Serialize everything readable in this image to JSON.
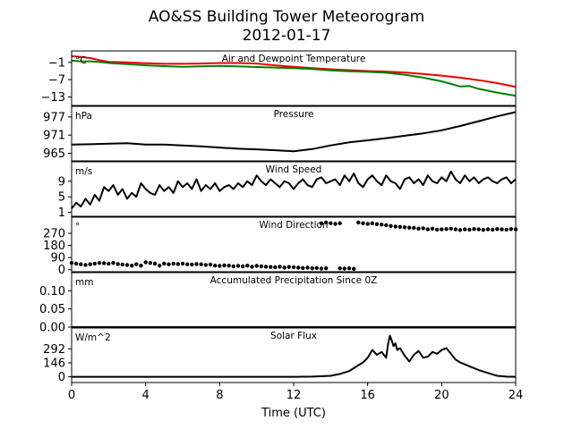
{
  "figure": {
    "title_line1": "AO&SS Building Tower Meteorogram",
    "title_line2": "2012-01-17",
    "xlabel": "Time (UTC)",
    "xticks": [
      0,
      4,
      8,
      12,
      16,
      20,
      24
    ],
    "xlim": [
      0,
      24
    ]
  },
  "chart_data": [
    {
      "type": "line",
      "title": "Air and Dewpoint Temperature",
      "unit": "°C",
      "yticks": [
        -1,
        -7,
        -13
      ],
      "ylim": [
        -16,
        3
      ],
      "series": [
        {
          "color": "#ee0000",
          "x": [
            0,
            0.5,
            1,
            1.5,
            2,
            3,
            4,
            5,
            6,
            7,
            8,
            9,
            10,
            11,
            12,
            13,
            14,
            15,
            16,
            17,
            18,
            19,
            20,
            21,
            22,
            23,
            24
          ],
          "y": [
            1.2,
            0.9,
            0.5,
            -0.2,
            -0.8,
            -1.0,
            -1.3,
            -1.5,
            -1.5,
            -1.4,
            -1.2,
            -1.2,
            -1.4,
            -2.0,
            -2.5,
            -3.0,
            -3.4,
            -3.7,
            -4.0,
            -4.2,
            -4.5,
            -5.0,
            -5.6,
            -6.3,
            -7.2,
            -8.2,
            -9.5
          ]
        },
        {
          "color": "#008000",
          "x": [
            0,
            0.5,
            1,
            1.5,
            2,
            3,
            4,
            5,
            6,
            7,
            8,
            9,
            10,
            11,
            12,
            13,
            14,
            15,
            16,
            17,
            18,
            19,
            20,
            20.5,
            21,
            21.5,
            22,
            23,
            24
          ],
          "y": [
            -0.4,
            -0.6,
            -0.6,
            -0.8,
            -1.2,
            -1.6,
            -2.0,
            -2.3,
            -2.5,
            -2.4,
            -2.2,
            -2.4,
            -2.6,
            -2.8,
            -3.0,
            -3.3,
            -3.8,
            -4.1,
            -4.3,
            -4.6,
            -5.3,
            -6.3,
            -7.6,
            -8.5,
            -9.4,
            -9.2,
            -10.2,
            -11.5,
            -12.6
          ]
        }
      ]
    },
    {
      "type": "line",
      "title": "Pressure",
      "unit": "hPa",
      "yticks": [
        977,
        971,
        965
      ],
      "ylim": [
        962.5,
        980.5
      ],
      "series": [
        {
          "color": "#000000",
          "x": [
            0,
            1,
            2,
            3,
            4,
            5,
            6,
            7,
            8,
            9,
            10,
            11,
            12,
            13,
            14,
            15,
            16,
            17,
            18,
            19,
            20,
            21,
            22,
            23,
            24
          ],
          "y": [
            967.9,
            968.0,
            968.2,
            968.3,
            967.9,
            967.9,
            967.6,
            967.3,
            966.9,
            966.5,
            966.3,
            966.0,
            965.7,
            966.4,
            967.6,
            968.6,
            969.3,
            970.0,
            970.8,
            971.6,
            972.6,
            974.0,
            975.6,
            977.2,
            978.6
          ]
        }
      ]
    },
    {
      "type": "line",
      "title": "Wind Speed",
      "unit": "m/s",
      "yticks": [
        9,
        5,
        1
      ],
      "ylim": [
        0,
        14
      ],
      "series": [
        {
          "color": "#000000",
          "x": [
            0,
            0.25,
            0.5,
            0.75,
            1,
            1.25,
            1.5,
            1.75,
            2,
            2.25,
            2.5,
            2.75,
            3,
            3.25,
            3.5,
            3.75,
            4,
            4.25,
            4.5,
            4.75,
            5,
            5.25,
            5.5,
            5.75,
            6,
            6.25,
            6.5,
            6.75,
            7,
            7.25,
            7.5,
            7.75,
            8,
            8.25,
            8.5,
            8.75,
            9,
            9.25,
            9.5,
            9.75,
            10,
            10.25,
            10.5,
            10.75,
            11,
            11.25,
            11.5,
            11.75,
            12,
            12.25,
            12.5,
            12.75,
            13,
            13.25,
            13.5,
            13.75,
            14,
            14.25,
            14.5,
            14.75,
            15,
            15.25,
            15.5,
            15.75,
            16,
            16.25,
            16.5,
            16.75,
            17,
            17.25,
            17.5,
            17.75,
            18,
            18.25,
            18.5,
            18.75,
            19,
            19.25,
            19.5,
            19.75,
            20,
            20.25,
            20.5,
            20.75,
            21,
            21.25,
            21.5,
            21.75,
            22,
            22.25,
            22.5,
            22.75,
            23,
            23.25,
            23.5,
            23.75,
            24
          ],
          "y": [
            2.0,
            3.5,
            2.5,
            4.5,
            3.0,
            5.5,
            4.0,
            7.5,
            6.5,
            8.0,
            5.5,
            7.0,
            4.5,
            6.0,
            5.0,
            8.5,
            7.0,
            6.0,
            5.5,
            8.0,
            6.5,
            7.5,
            6.0,
            9.0,
            7.5,
            8.5,
            7.0,
            9.5,
            6.5,
            8.0,
            7.0,
            8.5,
            6.5,
            7.5,
            8.0,
            7.0,
            8.5,
            7.5,
            9.0,
            8.0,
            10.5,
            9.0,
            8.0,
            9.5,
            8.5,
            7.5,
            9.0,
            8.5,
            7.0,
            8.5,
            9.5,
            8.0,
            7.5,
            9.5,
            10.0,
            8.5,
            9.0,
            9.5,
            8.0,
            10.5,
            9.0,
            11.0,
            8.5,
            7.5,
            9.5,
            10.5,
            9.0,
            8.0,
            10.5,
            9.0,
            8.5,
            7.0,
            9.5,
            10.0,
            8.5,
            9.5,
            8.0,
            10.5,
            9.0,
            8.5,
            10.0,
            9.0,
            11.5,
            9.5,
            8.5,
            10.5,
            9.0,
            10.0,
            8.5,
            9.5,
            10.0,
            9.0,
            8.5,
            9.5,
            10.0,
            8.5,
            9.5
          ]
        }
      ]
    },
    {
      "type": "scatter",
      "title": "Wind Direction",
      "unit": "°",
      "yticks": [
        270,
        180,
        90,
        0
      ],
      "ylim": [
        -15,
        390
      ],
      "series": [
        {
          "color": "#000000",
          "x": [
            0,
            0.25,
            0.5,
            0.75,
            1,
            1.25,
            1.5,
            1.75,
            2,
            2.25,
            2.5,
            2.75,
            3,
            3.25,
            3.5,
            3.75,
            4,
            4.25,
            4.5,
            4.75,
            5,
            5.25,
            5.5,
            5.75,
            6,
            6.25,
            6.5,
            6.75,
            7,
            7.25,
            7.5,
            7.75,
            8,
            8.25,
            8.5,
            8.75,
            9,
            9.25,
            9.5,
            9.75,
            10,
            10.25,
            10.5,
            10.75,
            11,
            11.25,
            11.5,
            11.75,
            12,
            12.25,
            12.5,
            12.75,
            13,
            13.25,
            13.5,
            13.75,
            14.5,
            14.75,
            15,
            15.25
          ],
          "y": [
            50,
            45,
            40,
            35,
            40,
            45,
            50,
            48,
            45,
            50,
            42,
            38,
            35,
            30,
            40,
            30,
            55,
            50,
            45,
            30,
            45,
            40,
            45,
            42,
            45,
            40,
            38,
            42,
            40,
            35,
            38,
            30,
            28,
            32,
            30,
            25,
            28,
            25,
            30,
            22,
            28,
            25,
            22,
            20,
            18,
            22,
            15,
            20,
            18,
            15,
            12,
            15,
            10,
            12,
            8,
            10,
            10,
            8,
            10,
            6
          ]
        },
        {
          "color": "#000000",
          "x": [
            13.5,
            13.75,
            14,
            14.25,
            14.5,
            15.5,
            15.75,
            16,
            16.25,
            16.5,
            16.75,
            17,
            17.25,
            17.5,
            17.75,
            18,
            18.25,
            18.5,
            18.75,
            19,
            19.25,
            19.5,
            19.75,
            20,
            20.25,
            20.5,
            20.75,
            21,
            21.25,
            21.5,
            21.75,
            22,
            22.25,
            22.5,
            22.75,
            23,
            23.25,
            23.5,
            23.75,
            24
          ],
          "y": [
            345,
            350,
            345,
            340,
            345,
            350,
            345,
            340,
            345,
            338,
            335,
            330,
            325,
            320,
            318,
            315,
            312,
            310,
            305,
            308,
            300,
            305,
            298,
            300,
            302,
            305,
            300,
            295,
            300,
            298,
            302,
            300,
            296,
            300,
            298,
            302,
            300,
            298,
            302,
            300
          ]
        }
      ]
    },
    {
      "type": "line",
      "title": "Accumulated Precipitation Since 0Z",
      "unit": "mm",
      "yticks": [
        0.1,
        0.05,
        0.0
      ],
      "ytick_labels": [
        "0.10",
        "0.05",
        "0.00"
      ],
      "ylim": [
        0,
        0.15
      ],
      "series": [
        {
          "color": "#000000",
          "x": [
            0,
            24
          ],
          "y": [
            0,
            0
          ]
        }
      ]
    },
    {
      "type": "line",
      "title": "Solar Flux",
      "unit": "W/m^2",
      "yticks": [
        292,
        146,
        0
      ],
      "ylim": [
        -60,
        510
      ],
      "series": [
        {
          "color": "#000000",
          "x": [
            0,
            12,
            13,
            14,
            14.5,
            15,
            15.25,
            15.5,
            15.75,
            16,
            16.25,
            16.5,
            16.75,
            17,
            17.1,
            17.2,
            17.3,
            17.4,
            17.5,
            17.6,
            17.75,
            18,
            18.25,
            18.5,
            18.75,
            19,
            19.25,
            19.5,
            19.75,
            20,
            20.25,
            20.5,
            20.75,
            21,
            21.5,
            22,
            22.5,
            23,
            23.5,
            24
          ],
          "y": [
            0,
            0,
            2,
            10,
            30,
            60,
            90,
            120,
            150,
            200,
            280,
            230,
            260,
            200,
            340,
            430,
            380,
            320,
            350,
            280,
            300,
            220,
            160,
            230,
            270,
            200,
            210,
            260,
            240,
            280,
            300,
            240,
            180,
            150,
            110,
            70,
            40,
            10,
            2,
            0
          ]
        }
      ]
    }
  ]
}
